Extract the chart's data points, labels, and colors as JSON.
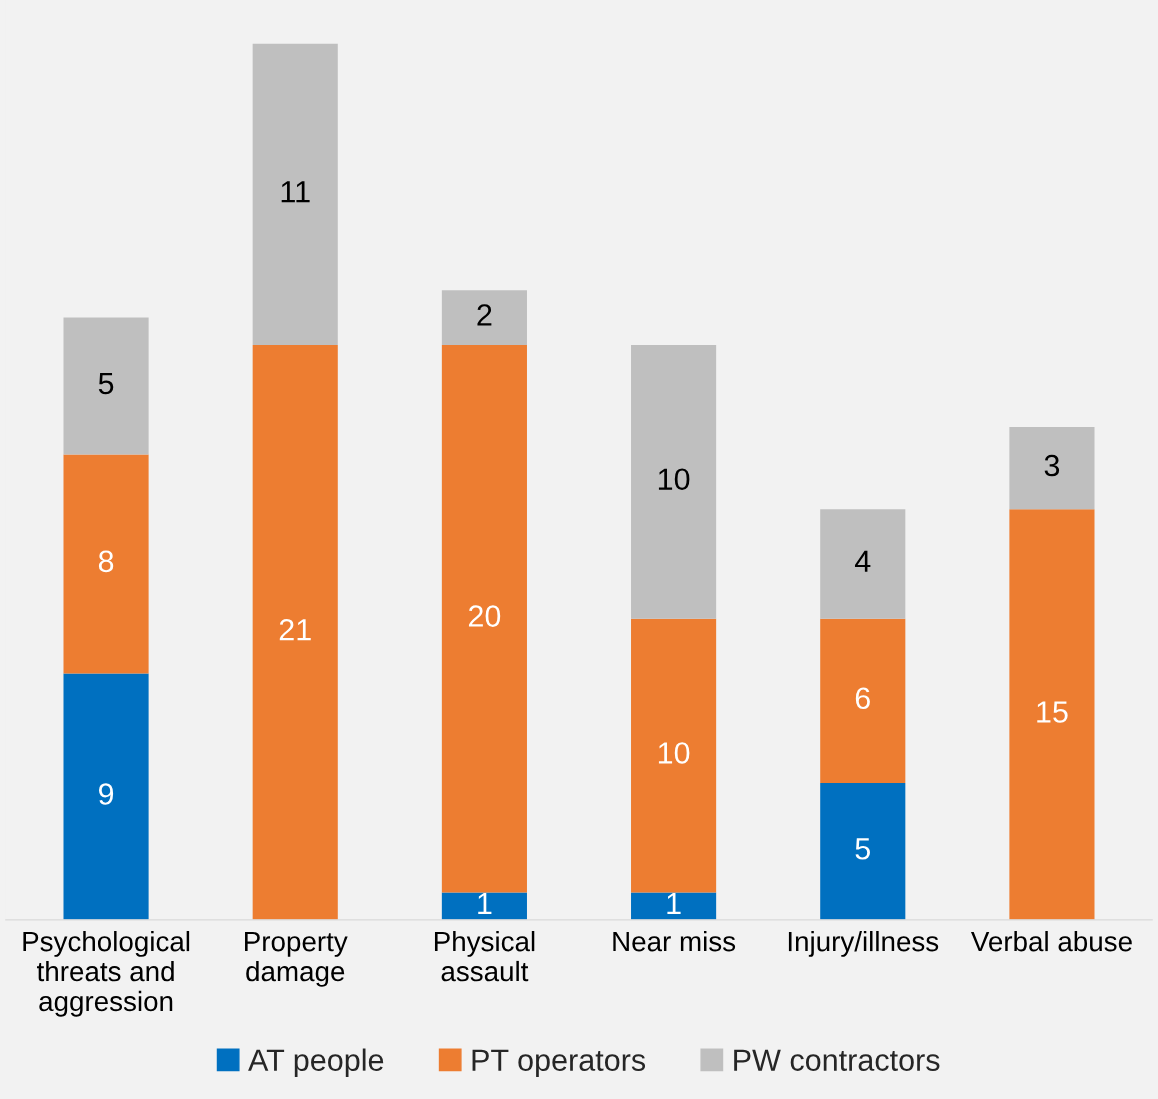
{
  "chart_data": {
    "type": "bar",
    "stacked": true,
    "data_labels": true,
    "legend": "bottom",
    "grid": false,
    "categories": [
      "Psychological\nthreats and\naggression",
      "Property\ndamage",
      "Physical\nassault",
      "Near miss",
      "Injury/illness",
      "Verbal abuse"
    ],
    "series": [
      {
        "name": "AT people",
        "color": "#0070c0",
        "values": [
          9,
          null,
          1,
          1,
          5,
          null
        ]
      },
      {
        "name": "PT operators",
        "color": "#ed7d31",
        "values": [
          8,
          21,
          20,
          10,
          6,
          15
        ]
      },
      {
        "name": "PW contractors",
        "color": "#bfbfbf",
        "values": [
          5,
          11,
          2,
          10,
          4,
          3
        ]
      }
    ]
  }
}
